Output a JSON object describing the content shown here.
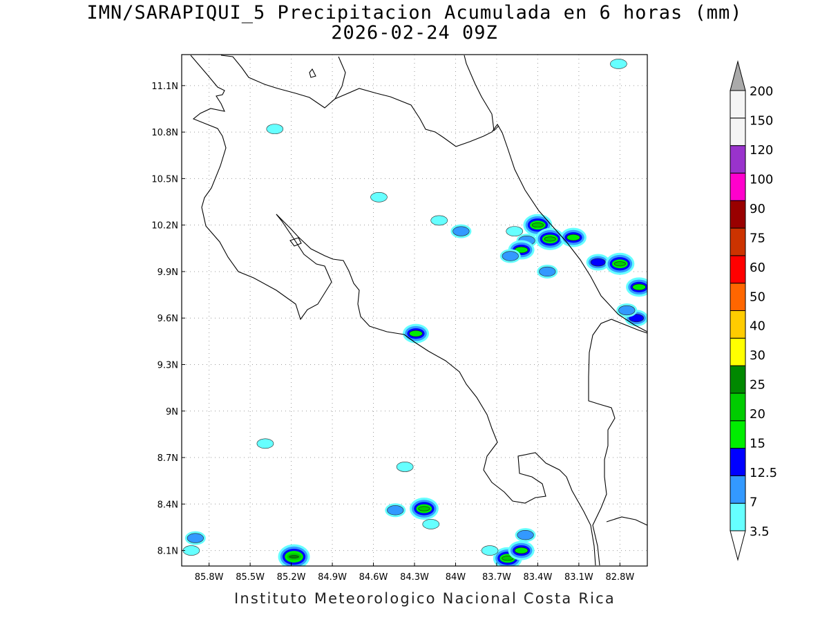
{
  "title": "IMN/SARAPIQUI_5 Precipitacion Acumulada en 6 horas (mm)",
  "subtitle": "2026-02-24 09Z",
  "footer": "Instituto Meteorologico Nacional Costa Rica",
  "map": {
    "lon_range": [
      -86.0,
      -82.6
    ],
    "lat_range": [
      8.0,
      11.3
    ],
    "lon_ticks": [
      {
        "value": -85.8,
        "label": "85.8W"
      },
      {
        "value": -85.5,
        "label": "85.5W"
      },
      {
        "value": -85.2,
        "label": "85.2W"
      },
      {
        "value": -84.9,
        "label": "84.9W"
      },
      {
        "value": -84.6,
        "label": "84.6W"
      },
      {
        "value": -84.3,
        "label": "84.3W"
      },
      {
        "value": -84.0,
        "label": "84W"
      },
      {
        "value": -83.7,
        "label": "83.7W"
      },
      {
        "value": -83.4,
        "label": "83.4W"
      },
      {
        "value": -83.1,
        "label": "83.1W"
      },
      {
        "value": -82.8,
        "label": "82.8W"
      }
    ],
    "lat_ticks": [
      {
        "value": 8.1,
        "label": "8.1N"
      },
      {
        "value": 8.4,
        "label": "8.4N"
      },
      {
        "value": 8.7,
        "label": "8.7N"
      },
      {
        "value": 9.0,
        "label": "9N"
      },
      {
        "value": 9.3,
        "label": "9.3N"
      },
      {
        "value": 9.6,
        "label": "9.6N"
      },
      {
        "value": 9.9,
        "label": "9.9N"
      },
      {
        "value": 10.2,
        "label": "10.2N"
      },
      {
        "value": 10.5,
        "label": "10.5N"
      },
      {
        "value": 10.8,
        "label": "10.8N"
      },
      {
        "value": 11.1,
        "label": "11.1N"
      }
    ],
    "grid": true
  },
  "colorbar": {
    "levels": [
      "3.5",
      "7",
      "12.5",
      "15",
      "20",
      "25",
      "30",
      "40",
      "50",
      "60",
      "75",
      "90",
      "100",
      "120",
      "150",
      "200"
    ],
    "colors": [
      "#66ffff",
      "#3399ff",
      "#0000ff",
      "#00ee00",
      "#00cc00",
      "#008800",
      "#ffff00",
      "#ffcc00",
      "#ff6600",
      "#ff0000",
      "#cc3300",
      "#990000",
      "#ff00cc",
      "#9933cc",
      "#f5f5f5",
      "#aaaaaa"
    ]
  },
  "precip_cells": [
    {
      "lon": -83.4,
      "lat": 10.2,
      "level": 4
    },
    {
      "lon": -83.31,
      "lat": 10.11,
      "level": 4
    },
    {
      "lon": -83.48,
      "lat": 10.1,
      "level": 1
    },
    {
      "lon": -83.52,
      "lat": 10.04,
      "level": 3
    },
    {
      "lon": -83.57,
      "lat": 10.16,
      "level": 0
    },
    {
      "lon": -83.6,
      "lat": 10.0,
      "level": 1
    },
    {
      "lon": -83.33,
      "lat": 9.9,
      "level": 1
    },
    {
      "lon": -83.14,
      "lat": 10.12,
      "level": 3
    },
    {
      "lon": -82.96,
      "lat": 9.96,
      "level": 2
    },
    {
      "lon": -82.8,
      "lat": 9.95,
      "level": 4
    },
    {
      "lon": -82.66,
      "lat": 9.8,
      "level": 3
    },
    {
      "lon": -82.68,
      "lat": 9.6,
      "level": 2
    },
    {
      "lon": -82.75,
      "lat": 9.65,
      "level": 1
    },
    {
      "lon": -83.96,
      "lat": 10.16,
      "level": 1
    },
    {
      "lon": -84.12,
      "lat": 10.23,
      "level": 0
    },
    {
      "lon": -84.56,
      "lat": 10.38,
      "level": 0
    },
    {
      "lon": -84.29,
      "lat": 9.5,
      "level": 3
    },
    {
      "lon": -85.32,
      "lat": 10.82,
      "level": 0
    },
    {
      "lon": -82.81,
      "lat": 11.24,
      "level": 0
    },
    {
      "lon": -85.39,
      "lat": 8.79,
      "level": 0
    },
    {
      "lon": -84.44,
      "lat": 8.36,
      "level": 1
    },
    {
      "lon": -84.23,
      "lat": 8.37,
      "level": 4
    },
    {
      "lon": -84.37,
      "lat": 8.64,
      "level": 0
    },
    {
      "lon": -84.18,
      "lat": 8.27,
      "level": 0
    },
    {
      "lon": -85.18,
      "lat": 8.06,
      "level": 5
    },
    {
      "lon": -85.9,
      "lat": 8.18,
      "level": 1
    },
    {
      "lon": -85.93,
      "lat": 8.1,
      "level": 0
    },
    {
      "lon": -83.62,
      "lat": 8.05,
      "level": 4
    },
    {
      "lon": -83.52,
      "lat": 8.1,
      "level": 3
    },
    {
      "lon": -83.49,
      "lat": 8.2,
      "level": 1
    },
    {
      "lon": -83.75,
      "lat": 8.1,
      "level": 0
    }
  ]
}
